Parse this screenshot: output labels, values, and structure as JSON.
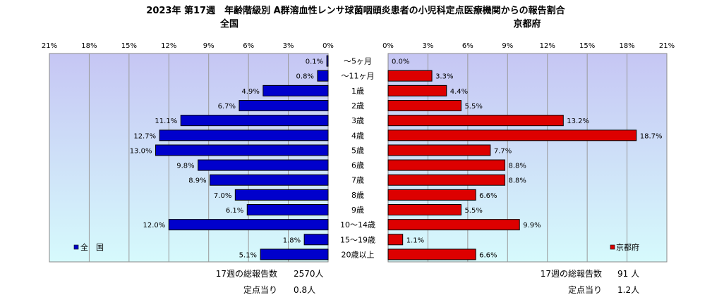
{
  "title": "2023年 第17週　年齢階級別 A群溶血性レンサ球菌咽頭炎患者の小児科定点医療機関からの報告割合",
  "chart_data": {
    "type": "bar",
    "orientation": "horizontal",
    "categories": [
      "～5ヶ月",
      "～11ヶ月",
      "1歳",
      "2歳",
      "3歳",
      "4歳",
      "5歳",
      "6歳",
      "7歳",
      "8歳",
      "9歳",
      "10～14歳",
      "15～19歳",
      "20歳以上"
    ],
    "panels": [
      {
        "subtitle": "全国",
        "direction": "left",
        "xlim": [
          0,
          21
        ],
        "ticks": [
          "21%",
          "18%",
          "15%",
          "12%",
          "9%",
          "6%",
          "3%",
          "0%"
        ],
        "series": [
          {
            "name": "全　国",
            "color": "#0000cc",
            "values": [
              0.1,
              0.8,
              4.9,
              6.7,
              11.1,
              12.7,
              13.0,
              9.8,
              8.9,
              7.0,
              6.1,
              12.0,
              1.8,
              5.1
            ],
            "labels": [
              "0.1%",
              "0.8%",
              "4.9%",
              "6.7%",
              "11.1%",
              "12.7%",
              "13.0%",
              "9.8%",
              "8.9%",
              "7.0%",
              "6.1%",
              "12.0%",
              "1.8%",
              "5.1%"
            ]
          }
        ],
        "legend": "bottom-left",
        "footer": {
          "total_label": "17週の総報告数",
          "total_value": "2570人",
          "per_label": "定点当り",
          "per_value": "0.8人"
        }
      },
      {
        "subtitle": "京都府",
        "direction": "right",
        "xlim": [
          0,
          21
        ],
        "ticks": [
          "0%",
          "3%",
          "6%",
          "9%",
          "12%",
          "15%",
          "18%",
          "21%"
        ],
        "series": [
          {
            "name": "京都府",
            "color": "#dd0000",
            "values": [
              0.0,
              3.3,
              4.4,
              5.5,
              13.2,
              18.7,
              7.7,
              8.8,
              8.8,
              6.6,
              5.5,
              9.9,
              1.1,
              6.6
            ],
            "labels": [
              "0.0%",
              "3.3%",
              "4.4%",
              "5.5%",
              "13.2%",
              "18.7%",
              "7.7%",
              "8.8%",
              "8.8%",
              "6.6%",
              "5.5%",
              "9.9%",
              "1.1%",
              "6.6%"
            ]
          }
        ],
        "legend": "bottom-right",
        "footer": {
          "total_label": "17週の総報告数",
          "total_value": "91 人",
          "per_label": "定点当り",
          "per_value": "1.2人"
        }
      }
    ]
  }
}
